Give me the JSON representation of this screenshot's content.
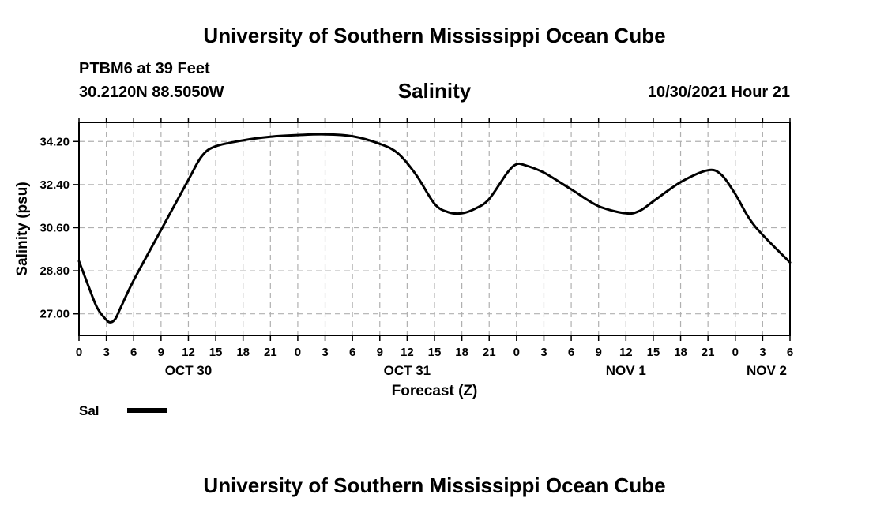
{
  "page": {
    "top_title": "University of Southern Mississippi Ocean Cube",
    "bottom_title": "University of Southern Mississippi Ocean Cube",
    "station_name": "PTBM6 at 39 Feet",
    "station_coords": "30.2120N  88.5050W",
    "datetime": "10/30/2021 Hour 21"
  },
  "chart_data": {
    "type": "line",
    "title": "Salinity",
    "xlabel": "Forecast (Z)",
    "ylabel": "Salinity (psu)",
    "xlim": [
      0,
      78
    ],
    "ylim": [
      26.1,
      35.0
    ],
    "yticks": [
      27.0,
      28.8,
      30.6,
      32.4,
      34.2
    ],
    "ytick_labels": [
      "27.00",
      "28.80",
      "30.60",
      "32.40",
      "34.20"
    ],
    "xtick_labels": [
      "0",
      "3",
      "6",
      "9",
      "12",
      "15",
      "18",
      "21",
      "0",
      "3",
      "6",
      "9",
      "12",
      "15",
      "18",
      "21",
      "0",
      "3",
      "6",
      "9",
      "12",
      "15",
      "18",
      "21",
      "0",
      "3",
      "6"
    ],
    "date_labels": [
      {
        "label": "OCT 30",
        "x": 12
      },
      {
        "label": "OCT 31",
        "x": 36
      },
      {
        "label": "NOV 1",
        "x": 60
      },
      {
        "label": "NOV 2",
        "x": 78
      }
    ],
    "grid": true,
    "legend_position": "bottom-left",
    "series": [
      {
        "name": "Sal",
        "color": "#000000",
        "x": [
          0,
          1,
          2,
          3,
          3.5,
          4,
          4.5,
          6,
          9,
          12,
          13.5,
          15,
          18,
          21,
          24,
          27,
          30,
          33,
          35,
          37,
          39,
          40.5,
          42,
          43.5,
          45,
          47,
          48,
          49,
          51,
          54,
          57,
          60,
          61.5,
          63,
          66,
          69,
          70.5,
          72,
          73.5,
          75,
          78
        ],
        "y": [
          29.2,
          28.2,
          27.25,
          26.75,
          26.65,
          26.8,
          27.2,
          28.4,
          30.5,
          32.6,
          33.6,
          34.0,
          34.25,
          34.4,
          34.47,
          34.5,
          34.42,
          34.1,
          33.7,
          32.8,
          31.6,
          31.25,
          31.2,
          31.4,
          31.8,
          32.9,
          33.25,
          33.2,
          32.9,
          32.2,
          31.5,
          31.2,
          31.3,
          31.7,
          32.5,
          33.0,
          32.8,
          32.0,
          31.0,
          30.3,
          29.15
        ]
      }
    ]
  }
}
